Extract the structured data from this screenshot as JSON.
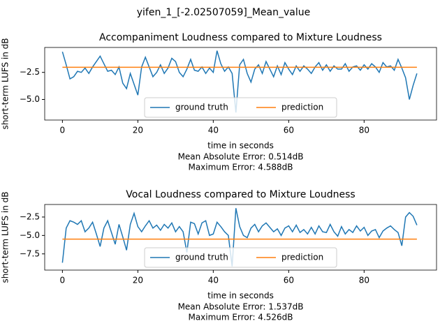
{
  "title": "yifen_1_[-2.02507059]_Mean_value",
  "chart_data": [
    {
      "type": "line",
      "title": "Accompaniment Loudness compared to Mixture Loudness",
      "xlabel": "time in seconds",
      "ylabel": "short-term LUFS in dB",
      "annotations": [
        "Mean Absolute Error: 0.514dB",
        "Maximum Error: 4.588dB"
      ],
      "xlim": [
        -4.7,
        99.2
      ],
      "ylim": [
        -6.9,
        -0.2
      ],
      "xticks": [
        0,
        20,
        40,
        60,
        80
      ],
      "yticks": [
        {
          "value": -5,
          "label": "−5.0"
        },
        {
          "value": -2.5,
          "label": "−2.5"
        }
      ],
      "legend": "lower center",
      "series": [
        {
          "name": "ground truth",
          "color": "#1f77b4",
          "x": [
            0,
            1,
            2,
            3,
            4,
            5,
            6,
            7,
            8,
            9,
            10,
            11,
            12,
            13,
            14,
            15,
            16,
            17,
            18,
            19,
            20,
            21,
            22,
            23,
            24,
            25,
            26,
            27,
            28,
            29,
            30,
            31,
            32,
            33,
            34,
            35,
            36,
            37,
            38,
            39,
            40,
            41,
            42,
            43,
            44,
            45,
            46,
            47,
            48,
            49,
            50,
            51,
            52,
            53,
            54,
            55,
            56,
            57,
            58,
            59,
            60,
            61,
            62,
            63,
            64,
            65,
            66,
            67,
            68,
            69,
            70,
            71,
            72,
            73,
            74,
            75,
            76,
            77,
            78,
            79,
            80,
            81,
            82,
            83,
            84,
            85,
            86,
            87,
            88,
            89,
            90,
            91,
            92,
            93,
            94
          ],
          "values": [
            -0.6,
            -1.8,
            -3.1,
            -2.9,
            -2.4,
            -2.5,
            -2.1,
            -2.6,
            -2.0,
            -1.5,
            -1.0,
            -1.7,
            -2.4,
            -2.3,
            -2.7,
            -2.0,
            -3.5,
            -4.0,
            -2.6,
            -3.6,
            -4.6,
            -2.0,
            -1.1,
            -2.0,
            -2.9,
            -2.5,
            -1.8,
            -2.6,
            -2.1,
            -1.2,
            -1.5,
            -2.5,
            -2.9,
            -2.2,
            -1.3,
            -2.3,
            -2.4,
            -2.0,
            -2.6,
            -2.1,
            -2.5,
            -0.5,
            -1.7,
            -2.4,
            -2.0,
            -2.6,
            -6.2,
            -1.8,
            -1.3,
            -2.6,
            -3.4,
            -2.2,
            -1.8,
            -2.6,
            -1.5,
            -2.2,
            -2.9,
            -1.9,
            -2.7,
            -1.6,
            -2.2,
            -2.7,
            -1.9,
            -2.4,
            -1.9,
            -2.2,
            -2.6,
            -2.0,
            -1.6,
            -2.3,
            -1.8,
            -2.4,
            -1.9,
            -2.2,
            -2.2,
            -1.7,
            -2.4,
            -2.0,
            -1.9,
            -2.3,
            -1.8,
            -2.2,
            -1.7,
            -2.0,
            -2.5,
            -1.6,
            -2.0,
            -1.9,
            -2.3,
            -1.3,
            -2.1,
            -3.0,
            -5.0,
            -3.7,
            -2.6
          ]
        },
        {
          "name": "prediction",
          "color": "#ff7f0e",
          "x": [
            0,
            94
          ],
          "values": [
            -2.03,
            -2.03
          ]
        }
      ]
    },
    {
      "type": "line",
      "title": "Vocal Loudness compared to Mixture Loudness",
      "xlabel": "time in seconds",
      "ylabel": "short-term LUFS in dB",
      "annotations": [
        "Mean Absolute Error: 1.537dB",
        "Maximum Error: 4.526dB"
      ],
      "xlim": [
        -4.7,
        99.2
      ],
      "ylim": [
        -9.7,
        -0.8
      ],
      "xticks": [
        0,
        20,
        40,
        60,
        80
      ],
      "yticks": [
        {
          "value": -7.5,
          "label": "−7.5"
        },
        {
          "value": -5,
          "label": "−5.0"
        },
        {
          "value": -2.5,
          "label": "−2.5"
        }
      ],
      "legend": "lower center",
      "series": [
        {
          "name": "ground truth",
          "color": "#1f77b4",
          "x": [
            0,
            1,
            2,
            3,
            4,
            5,
            6,
            7,
            8,
            9,
            10,
            11,
            12,
            13,
            14,
            15,
            16,
            17,
            18,
            19,
            20,
            21,
            22,
            23,
            24,
            25,
            26,
            27,
            28,
            29,
            30,
            31,
            32,
            33,
            34,
            35,
            36,
            37,
            38,
            39,
            40,
            41,
            42,
            43,
            44,
            45,
            46,
            47,
            48,
            49,
            50,
            51,
            52,
            53,
            54,
            55,
            56,
            57,
            58,
            59,
            60,
            61,
            62,
            63,
            64,
            65,
            66,
            67,
            68,
            69,
            70,
            71,
            72,
            73,
            74,
            75,
            76,
            77,
            78,
            79,
            80,
            81,
            82,
            83,
            84,
            85,
            86,
            87,
            88,
            89,
            90,
            91,
            92,
            93,
            94
          ],
          "values": [
            -8.7,
            -4.0,
            -3.0,
            -3.2,
            -3.5,
            -3.0,
            -4.5,
            -4.0,
            -3.2,
            -4.8,
            -6.5,
            -4.0,
            -3.0,
            -4.6,
            -6.2,
            -3.5,
            -5.2,
            -7.0,
            -3.5,
            -2.0,
            -3.8,
            -4.5,
            -3.7,
            -3.0,
            -4.0,
            -3.6,
            -4.3,
            -3.5,
            -4.0,
            -3.3,
            -4.5,
            -3.8,
            -4.5,
            -7.3,
            -3.2,
            -3.4,
            -4.8,
            -3.3,
            -3.0,
            -5.0,
            -4.8,
            -3.2,
            -3.8,
            -4.5,
            -5.0,
            -9.2,
            -1.3,
            -3.8,
            -5.0,
            -5.3,
            -4.0,
            -3.5,
            -4.5,
            -3.7,
            -3.3,
            -3.9,
            -4.5,
            -4.1,
            -5.0,
            -4.0,
            -3.7,
            -4.5,
            -3.6,
            -4.6,
            -4.2,
            -4.8,
            -3.9,
            -4.8,
            -3.7,
            -4.5,
            -4.6,
            -3.5,
            -4.5,
            -5.1,
            -3.8,
            -4.8,
            -4.2,
            -4.6,
            -3.7,
            -4.4,
            -3.9,
            -5.0,
            -4.4,
            -4.2,
            -5.3,
            -4.4,
            -4.0,
            -3.7,
            -4.2,
            -4.6,
            -6.4,
            -2.5,
            -1.9,
            -2.4,
            -3.6
          ]
        },
        {
          "name": "prediction",
          "color": "#ff7f0e",
          "x": [
            0,
            94
          ],
          "values": [
            -5.5,
            -5.5
          ]
        }
      ]
    }
  ]
}
